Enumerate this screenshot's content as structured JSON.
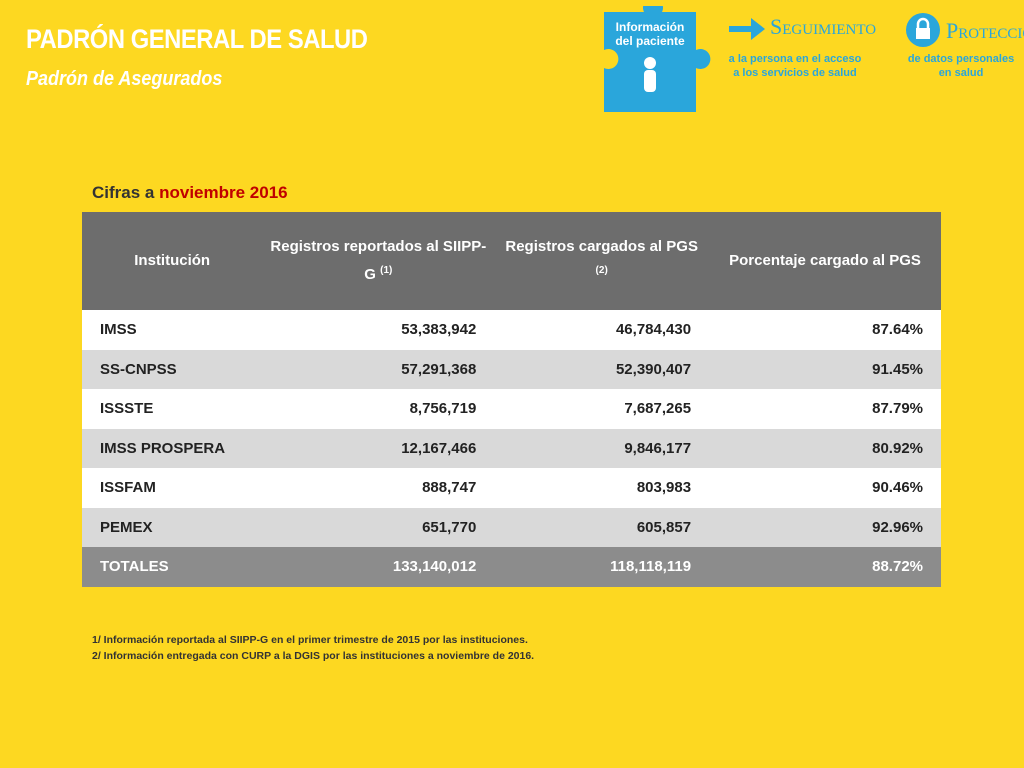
{
  "header": {
    "title": "PADRÓN GENERAL DE SALUD",
    "subtitle": "Padrón de Asegurados"
  },
  "badges": {
    "puzzle": "Información del paciente",
    "seguimiento": {
      "title": "Seguimiento",
      "text": "a la persona en el acceso a los servicios de salud"
    },
    "proteccion": {
      "title": "Protección",
      "text": "de datos personales en salud"
    }
  },
  "caption": {
    "prefix": "Cifras a",
    "date": "noviembre 2016"
  },
  "table": {
    "columns": [
      {
        "label": "Institución"
      },
      {
        "label": "Registros reportados al SIIPP-G",
        "note": "(1)"
      },
      {
        "label": "Registros cargados al PGS",
        "note": "(2)"
      },
      {
        "label": "Porcentaje cargado al PGS"
      }
    ],
    "rows": [
      [
        "IMSS",
        "53,383,942",
        "46,784,430",
        "87.64%"
      ],
      [
        "SS-CNPSS",
        "57,291,368",
        "52,390,407",
        "91.45%"
      ],
      [
        "ISSSTE",
        "8,756,719",
        "7,687,265",
        "87.79%"
      ],
      [
        "IMSS PROSPERA",
        "12,167,466",
        "9,846,177",
        "80.92%"
      ],
      [
        "ISSFAM",
        "888,747",
        "803,983",
        "90.46%"
      ],
      [
        "PEMEX",
        "651,770",
        "605,857",
        "92.96%"
      ]
    ],
    "total": [
      "TOTALES",
      "133,140,012",
      "118,118,119",
      "88.72%"
    ]
  },
  "footnotes": [
    "1/ Información reportada al SIIPP-G en el primer trimestre de 2015 por las instituciones.",
    "2/ Información entregada con CURP a la DGIS por las instituciones a noviembre de 2016."
  ]
}
